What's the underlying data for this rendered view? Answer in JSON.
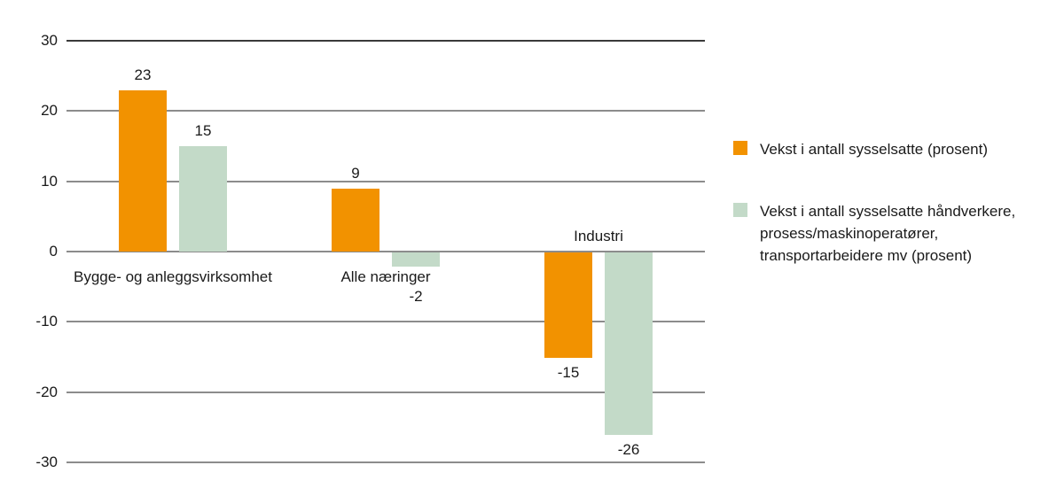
{
  "chart_data": {
    "type": "bar",
    "title": "",
    "xlabel": "",
    "ylabel": "",
    "categories": [
      "Bygge- og anleggsvirksomhet",
      "Alle næringer",
      "Industri"
    ],
    "series": [
      {
        "name": "Vekst i antall sysselsatte (prosent)",
        "color": "#F29200",
        "values": [
          23,
          9,
          -15
        ]
      },
      {
        "name": "Vekst i antall sysselsatte håndverkere, prosess/maskinoperatører, transportarbeidere mv (prosent)",
        "color": "#C3DAC8",
        "values": [
          15,
          -2,
          -26
        ]
      }
    ],
    "value_labels": [
      [
        "23",
        "9",
        "-15"
      ],
      [
        "15",
        "-2",
        "-26"
      ]
    ],
    "y_ticks": [
      30,
      20,
      10,
      0,
      -10,
      -20,
      -30
    ],
    "ylim": [
      -30,
      30
    ],
    "grid": true,
    "legend_position": "right",
    "legend": [
      {
        "color": "#F29200",
        "lines": [
          "Vekst i antall sysselsatte (prosent)"
        ]
      },
      {
        "color": "#C3DAC8",
        "lines": [
          "Vekst i antall sysselsatte håndverkere,",
          "prosess/maskinoperatører,",
          "transportarbeidere mv (prosent)"
        ]
      }
    ]
  },
  "colors": {
    "bar_orange": "#F29200",
    "bar_green": "#C3DAC8",
    "gridline": "#8C8C8C",
    "gridline_top": "#3A3A3A",
    "text": "#1A1A1A",
    "background": "#FFFFFF"
  }
}
